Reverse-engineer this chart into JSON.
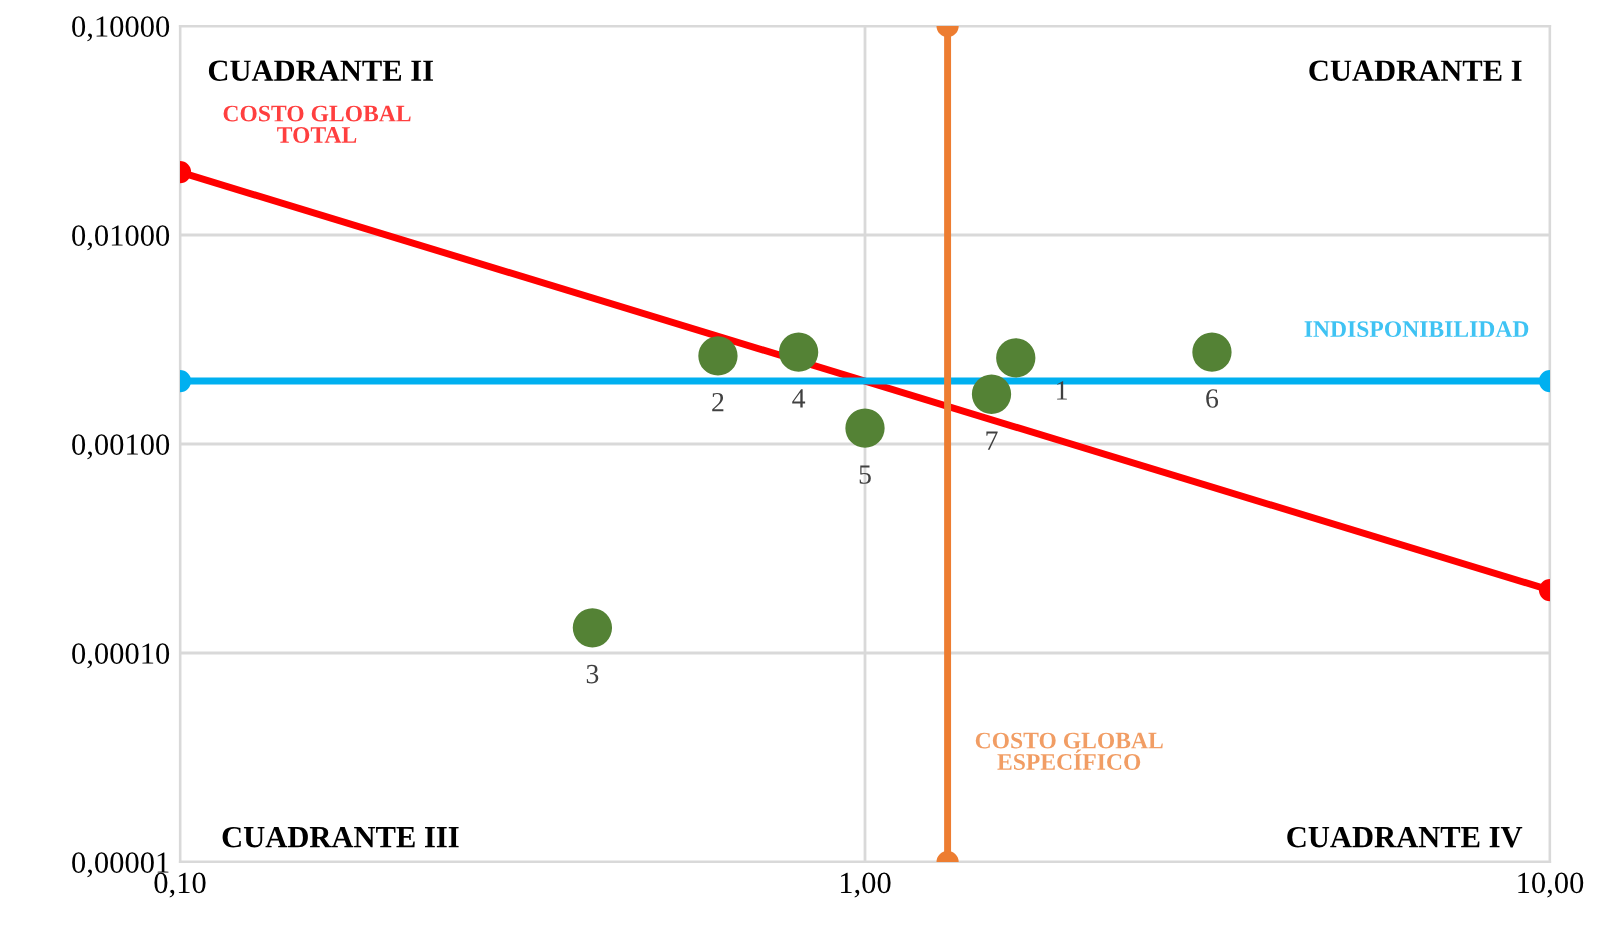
{
  "chart_data": {
    "type": "scatter",
    "log": "xy",
    "xlim": [
      0.1,
      10
    ],
    "ylim": [
      1e-05,
      0.1
    ],
    "xticks": [
      {
        "value": 0.1,
        "label": "0,10"
      },
      {
        "value": 1,
        "label": "1,00"
      },
      {
        "value": 10,
        "label": "10,00"
      }
    ],
    "yticks": [
      {
        "value": 1e-05,
        "label": "0,00001"
      },
      {
        "value": 0.0001,
        "label": "0,00010"
      },
      {
        "value": 0.001,
        "label": "0,00100"
      },
      {
        "value": 0.01,
        "label": "0,01000"
      },
      {
        "value": 0.1,
        "label": "0,10000"
      }
    ],
    "grid": true,
    "legend": false,
    "marker": "circle",
    "series": [
      {
        "color": "#548235",
        "x": [
          1.66,
          0.61,
          0.4,
          0.8,
          1.0,
          3.21,
          1.53
        ],
        "values": [
          0.00258,
          0.00264,
          0.000132,
          0.00275,
          0.00119,
          0.00275,
          0.00173
        ]
      },
      {
        "type": "line",
        "name": "COSTO GLOBAL TOTAL",
        "color": "#ff0000",
        "x": [
          0.1,
          10
        ],
        "values": [
          0.02,
          0.0002
        ]
      },
      {
        "type": "line",
        "name": "INDISPONIBILIDAD",
        "color": "#00b0f0",
        "x": [
          0.1,
          10
        ],
        "values": [
          0.002,
          0.002
        ]
      },
      {
        "type": "line",
        "name": "COSTO GLOBAL ESPECÍFICO",
        "color": "#ed7d31",
        "x": [
          1.32,
          1.32
        ],
        "values": [
          0.1,
          1e-05
        ]
      }
    ],
    "annotations": [
      "CUADRANTE II",
      "CUADRANTE I",
      "CUADRANTE III",
      "CUADRANTE IV",
      {
        "text": "1",
        "x": 1.66,
        "y": 0.00258
      },
      {
        "text": "2",
        "x": 0.61,
        "y": 0.00264
      },
      {
        "text": "3",
        "x": 0.4,
        "y": 0.000132
      },
      {
        "text": "4",
        "x": 0.8,
        "y": 0.00275
      },
      {
        "text": "5",
        "x": 1.0,
        "y": 0.00119
      },
      {
        "text": "6",
        "x": 3.21,
        "y": 0.00275
      },
      {
        "text": "7",
        "x": 1.53,
        "y": 0.00173
      }
    ]
  }
}
